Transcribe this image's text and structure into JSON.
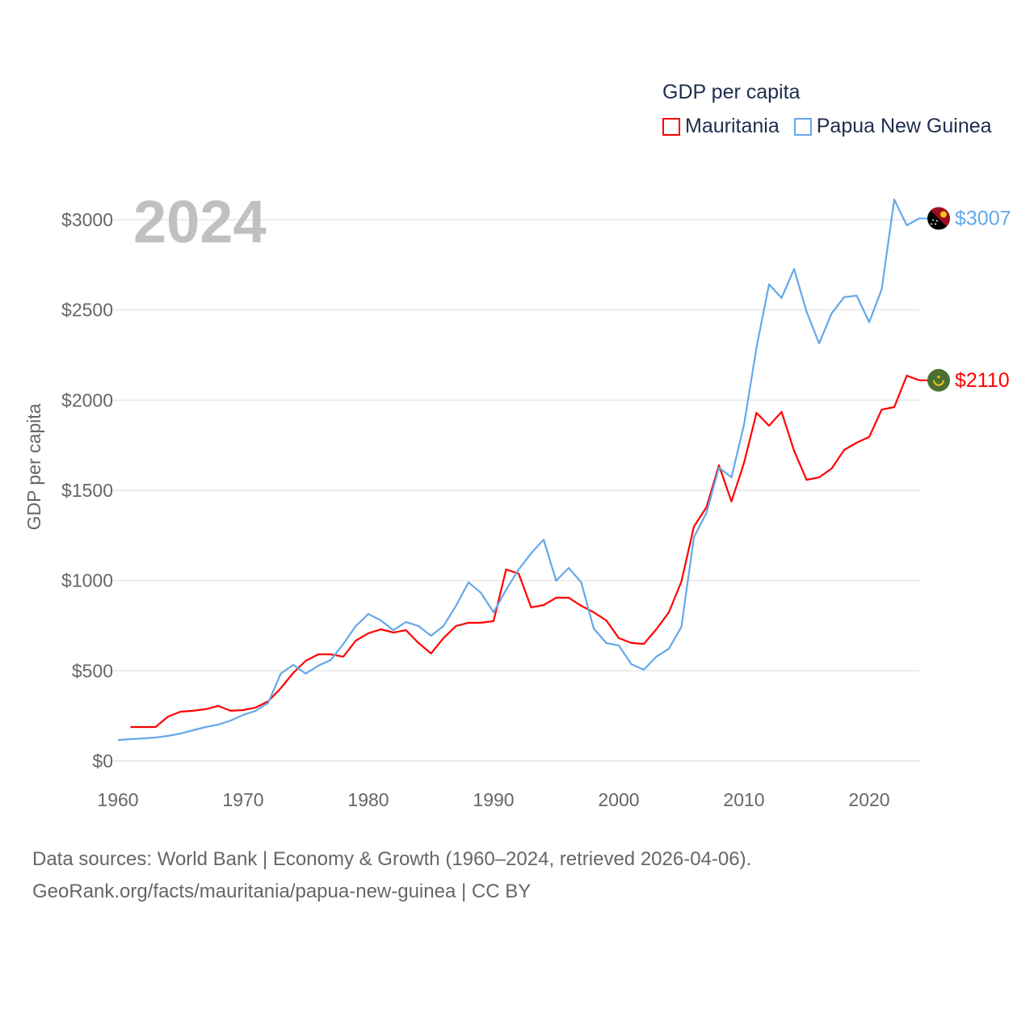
{
  "legend": {
    "title": "GDP per capita",
    "items": [
      {
        "name": "Mauritania",
        "color": "#ff0000"
      },
      {
        "name": "Papua New Guinea",
        "color": "#64a8ea"
      }
    ]
  },
  "year_label": "2024",
  "footer": {
    "line1": "Data sources: World Bank | Economy & Growth (1960–2024, retrieved 2026-04-06).",
    "line2": "GeoRank.org/facts/mauritania/papua-new-guinea | CC BY"
  },
  "chart_data": {
    "type": "line",
    "title": "GDP per capita",
    "xlabel": "",
    "ylabel": "GDP per capita",
    "xlim": [
      1960,
      2024
    ],
    "ylim": [
      0,
      3000
    ],
    "xticks": [
      1960,
      1970,
      1980,
      1990,
      2000,
      2010,
      2020
    ],
    "xtick_labels": [
      "1960",
      "1970",
      "1980",
      "1990",
      "2000",
      "2010",
      "2020"
    ],
    "yticks": [
      0,
      500,
      1000,
      1500,
      2000,
      2500,
      3000
    ],
    "ytick_labels": [
      "$0",
      "$500",
      "$1000",
      "$1500",
      "$2000",
      "$2500",
      "$3000"
    ],
    "grid": true,
    "legend_position": "top-right",
    "series": [
      {
        "name": "Mauritania",
        "color": "#ff0000",
        "flag": "mauritania-flag",
        "end_label": "$2110",
        "start_year": 1961,
        "values": [
          188,
          188,
          188,
          246,
          273,
          278,
          287,
          305,
          278,
          282,
          296,
          331,
          403,
          488,
          555,
          591,
          591,
          578,
          667,
          708,
          730,
          712,
          725,
          654,
          596,
          681,
          748,
          766,
          766,
          775,
          1061,
          1039,
          851,
          864,
          905,
          905,
          860,
          824,
          779,
          681,
          654,
          649,
          730,
          824,
          994,
          1299,
          1406,
          1639,
          1438,
          1652,
          1930,
          1858,
          1935,
          1720,
          1558,
          1572,
          1621,
          1724,
          1764,
          1796,
          1948,
          1961,
          2136,
          2110
        ]
      },
      {
        "name": "Papua New Guinea",
        "color": "#64a8ea",
        "flag": "papua-new-guinea-flag",
        "end_label": "$3007",
        "start_year": 1960,
        "values": [
          116,
          121,
          125,
          130,
          139,
          152,
          170,
          188,
          201,
          224,
          255,
          278,
          322,
          484,
          533,
          484,
          528,
          560,
          649,
          748,
          815,
          779,
          725,
          770,
          748,
          694,
          748,
          860,
          990,
          931,
          824,
          949,
          1061,
          1151,
          1227,
          999,
          1070,
          990,
          734,
          654,
          640,
          537,
          506,
          578,
          622,
          743,
          1240,
          1375,
          1626,
          1572,
          1863,
          2293,
          2642,
          2566,
          2727,
          2490,
          2315,
          2481,
          2571,
          2579,
          2432,
          2615,
          3112,
          2969,
          3007
        ]
      }
    ]
  }
}
